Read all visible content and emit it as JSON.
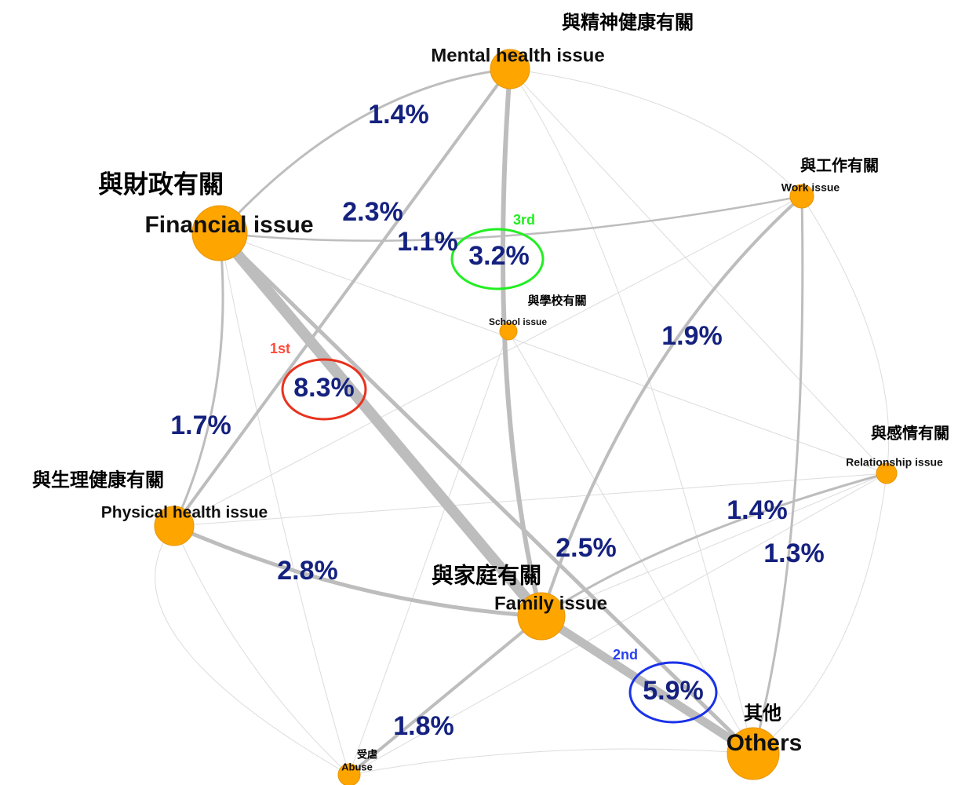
{
  "nodes": [
    {
      "label": "Mental health issue",
      "label_zh": "與精神健康有關"
    },
    {
      "label": "Financial issue",
      "label_zh": "與財政有關"
    },
    {
      "label": "Work issue",
      "label_zh": "與工作有關"
    },
    {
      "label": "School issue",
      "label_zh": "與學校有關"
    },
    {
      "label": "Relationship issue",
      "label_zh": "與感情有關"
    },
    {
      "label": "Physical health issue",
      "label_zh": "與生理健康有關"
    },
    {
      "label": "Family issue",
      "label_zh": "與家庭有關"
    },
    {
      "label": "Others",
      "label_zh": "其他"
    },
    {
      "label": "Abuse",
      "label_zh": "受虐"
    }
  ],
  "edges": [
    {
      "label": "1.4%"
    },
    {
      "label": "2.3%"
    },
    {
      "label": "1.1%"
    },
    {
      "label": "3.2%",
      "rank": "3rd"
    },
    {
      "label": "1.9%"
    },
    {
      "label": "8.3%",
      "rank": "1st"
    },
    {
      "label": "1.7%"
    },
    {
      "label": "1.4%"
    },
    {
      "label": "1.3%"
    },
    {
      "label": "2.5%"
    },
    {
      "label": "2.8%"
    },
    {
      "label": "5.9%",
      "rank": "2nd"
    },
    {
      "label": "1.8%"
    }
  ]
}
